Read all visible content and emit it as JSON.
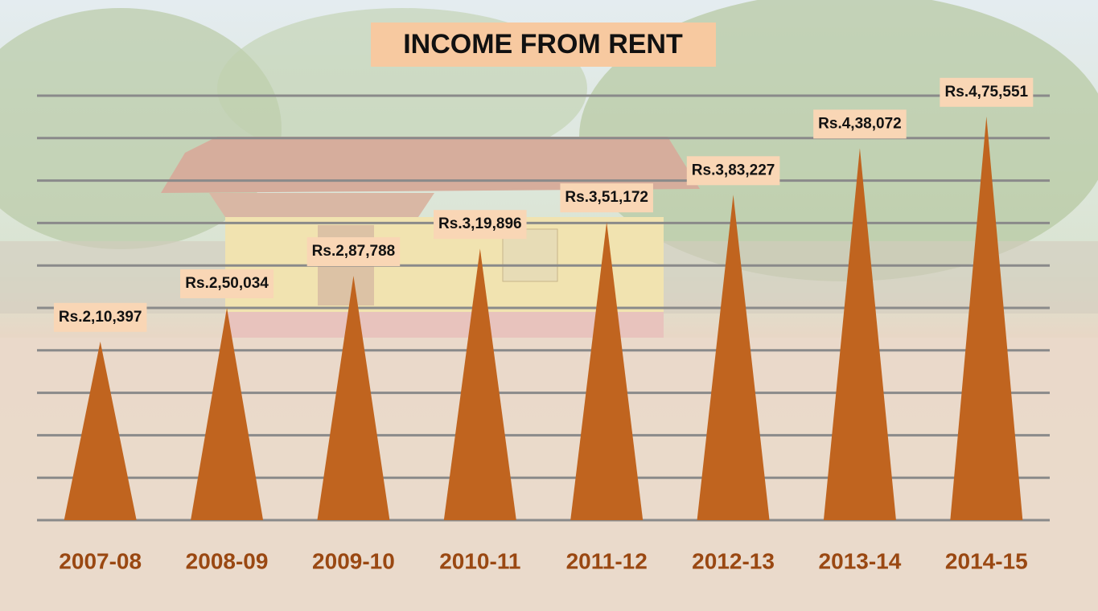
{
  "chart_data": {
    "type": "bar",
    "title": "INCOME FROM RENT",
    "categories": [
      "2007-08",
      "2008-09",
      "2009-10",
      "2010-11",
      "2011-12",
      "2012-13",
      "2013-14",
      "2014-15"
    ],
    "values": [
      210397,
      250034,
      287788,
      319896,
      351172,
      383227,
      438072,
      475551
    ],
    "value_labels": [
      "Rs.2,10,397",
      "Rs.2,50,034",
      "Rs.2,87,788",
      "Rs.3,19,896",
      "Rs.3,51,172",
      "Rs.3,83,227",
      "Rs.4,38,072",
      "Rs.4,75,551"
    ],
    "color": "#c0641f",
    "ylim": [
      0,
      500000
    ],
    "yticks": [
      0,
      50000,
      100000,
      150000,
      200000,
      250000,
      300000,
      350000,
      400000,
      450000,
      500000
    ],
    "grid": true
  }
}
